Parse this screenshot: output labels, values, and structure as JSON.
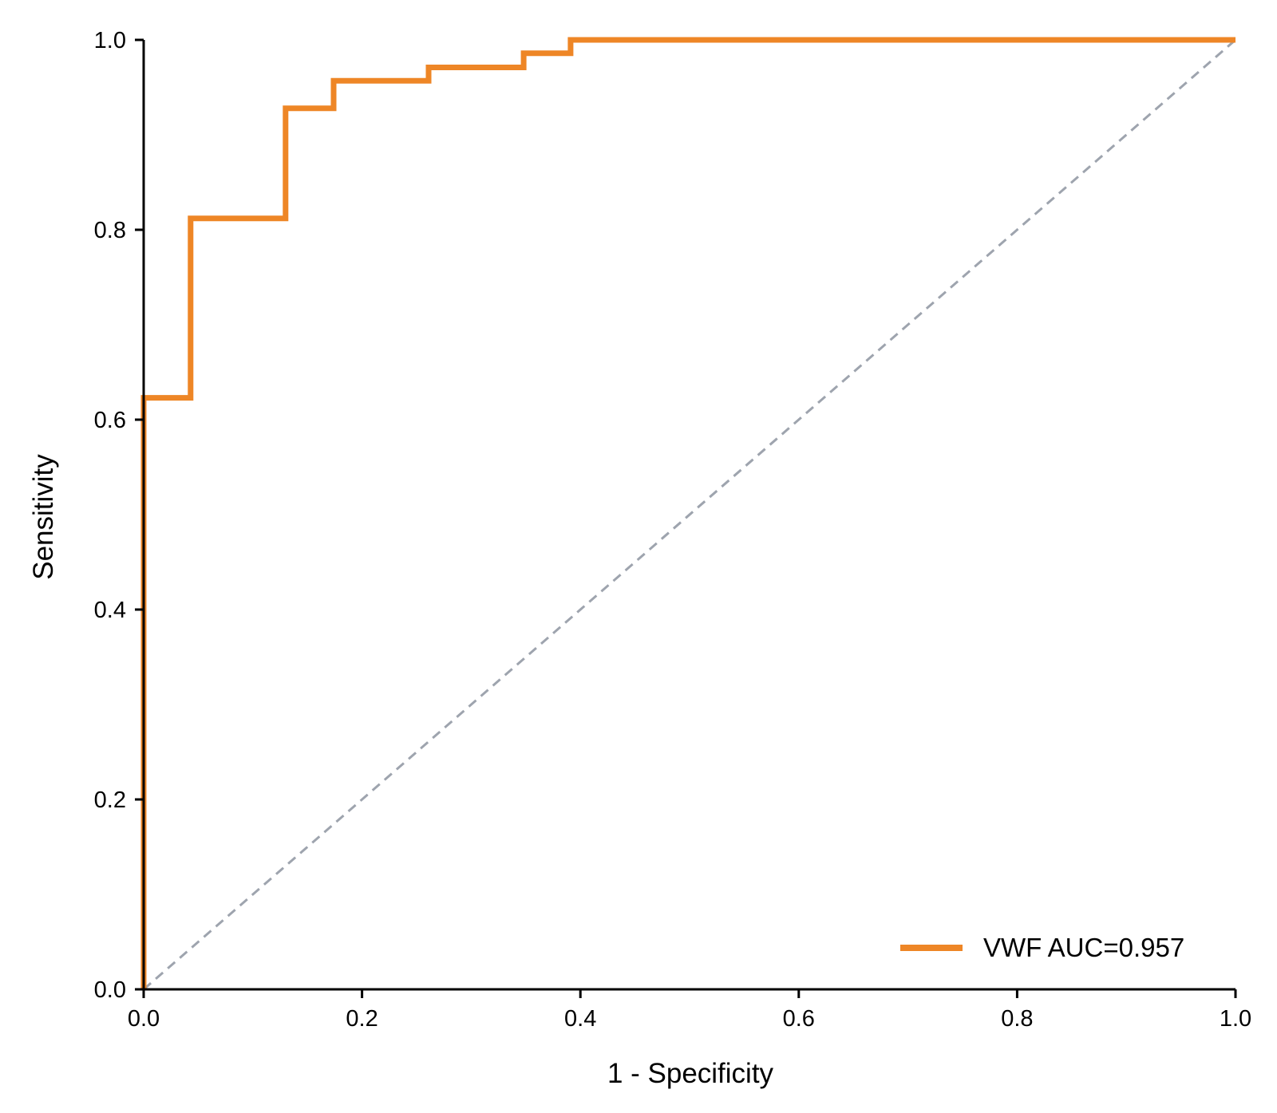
{
  "chart_data": {
    "type": "line",
    "title": "",
    "xlabel": "1 - Specificity",
    "ylabel": "Sensitivity",
    "xlim": [
      0,
      1
    ],
    "ylim": [
      0,
      1
    ],
    "xticks": [
      0,
      0.2,
      0.4,
      0.6,
      0.8,
      1
    ],
    "yticks": [
      0,
      0.2,
      0.4,
      0.6,
      0.8,
      1
    ],
    "xtick_labels": [
      "0.0",
      "0.2",
      "0.4",
      "0.6",
      "0.8",
      "1.0"
    ],
    "ytick_labels": [
      "0.0",
      "0.2",
      "0.4",
      "0.6",
      "0.8",
      "1.0"
    ],
    "grid": false,
    "legend_position": "bottom-right",
    "series": [
      {
        "name": "VWF",
        "legend_label": "VWF  AUC=0.957",
        "color": "#ee8626",
        "style": "step",
        "x": [
          0,
          0,
          0.043,
          0.043,
          0.13,
          0.13,
          0.174,
          0.174,
          0.261,
          0.261,
          0.348,
          0.348,
          0.391,
          0.391,
          1.0
        ],
        "y": [
          0,
          0.623,
          0.623,
          0.812,
          0.812,
          0.928,
          0.928,
          0.957,
          0.957,
          0.971,
          0.971,
          0.986,
          0.986,
          1.0,
          1.0
        ]
      }
    ],
    "reference_line": {
      "x": [
        0,
        1
      ],
      "y": [
        0,
        1
      ],
      "color": "#9ea4ae",
      "style": "dashed"
    }
  }
}
